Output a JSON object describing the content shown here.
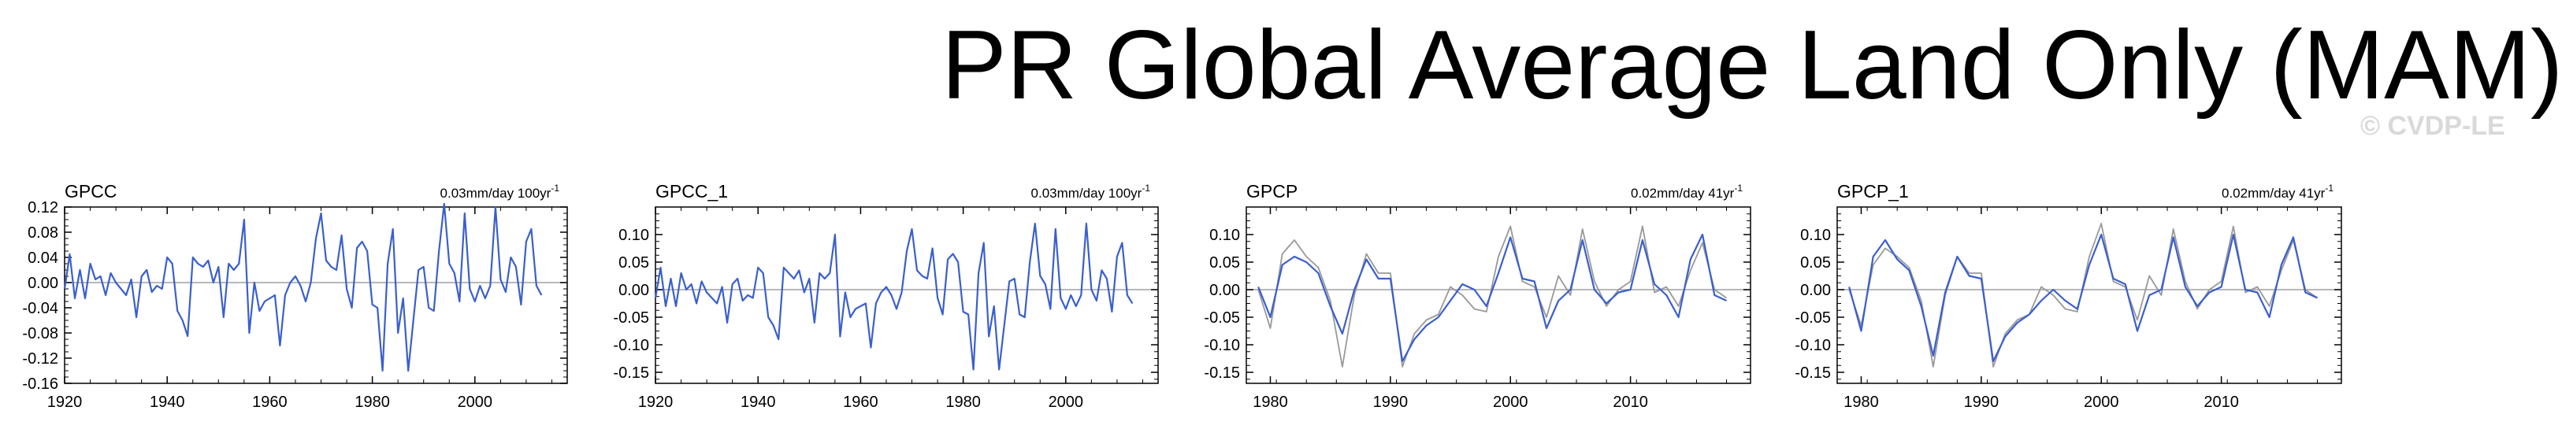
{
  "title": "PR Global Average Land Only (MAM)",
  "watermark": "© CVDP-LE",
  "colors": {
    "series": "#3a5fcd",
    "reference": "#999999",
    "zero": "#a0a0a0",
    "axis": "#000000"
  },
  "chart_data": [
    {
      "type": "line",
      "name": "GPCC",
      "trend": "0.03mm/day 100yr",
      "trend_exp": "-1",
      "xlim": [
        1920,
        2018
      ],
      "ylim": [
        -0.16,
        0.12
      ],
      "yticks": [
        "0.12",
        "0.08",
        "0.04",
        "0.00",
        "-0.04",
        "-0.08",
        "-0.12",
        "-0.16"
      ],
      "xticks": [
        "1920",
        "1940",
        "1960",
        "1980",
        "2000"
      ],
      "x_start": 1920,
      "series": [
        {
          "name": "GPCC",
          "values": [
            -0.01,
            0.045,
            -0.025,
            0.02,
            -0.025,
            0.03,
            0.005,
            0.01,
            -0.02,
            0.015,
            0.0,
            -0.01,
            -0.02,
            0.005,
            -0.055,
            0.01,
            0.02,
            -0.015,
            -0.005,
            -0.01,
            0.04,
            0.03,
            -0.045,
            -0.06,
            -0.085,
            0.04,
            0.03,
            0.025,
            0.035,
            0.0,
            0.025,
            -0.055,
            0.03,
            0.02,
            0.03,
            0.1,
            -0.08,
            0.0,
            -0.045,
            -0.03,
            -0.025,
            -0.02,
            -0.1,
            -0.02,
            0.0,
            0.01,
            -0.005,
            -0.03,
            0.0,
            0.07,
            0.11,
            0.035,
            0.025,
            0.02,
            0.075,
            -0.01,
            -0.04,
            0.055,
            0.065,
            0.05,
            -0.035,
            -0.04,
            -0.14,
            0.03,
            0.085,
            -0.08,
            -0.025,
            -0.14,
            -0.06,
            0.02,
            0.025,
            -0.04,
            -0.045,
            0.05,
            0.125,
            0.03,
            0.015,
            -0.03,
            0.11,
            -0.01,
            -0.03,
            -0.005,
            -0.025,
            -0.005,
            0.12,
            0.005,
            -0.015,
            0.04,
            0.025,
            -0.035,
            0.065,
            0.085,
            -0.005,
            -0.02
          ]
        }
      ]
    },
    {
      "type": "line",
      "name": "GPCC_1",
      "trend": "0.03mm/day 100yr",
      "trend_exp": "-1",
      "xlim": [
        1920,
        2018
      ],
      "ylim": [
        -0.17,
        0.15
      ],
      "yticks": [
        "0.10",
        "0.05",
        "0.00",
        "-0.05",
        "-0.10",
        "-0.15"
      ],
      "xticks": [
        "1920",
        "1940",
        "1960",
        "1980",
        "2000"
      ],
      "x_start": 1920,
      "series": [
        {
          "name": "GPCC_1",
          "values": [
            -0.015,
            0.04,
            -0.03,
            0.02,
            -0.03,
            0.03,
            0.0,
            0.01,
            -0.025,
            0.015,
            -0.005,
            -0.015,
            -0.025,
            0.005,
            -0.06,
            0.01,
            0.02,
            -0.02,
            -0.01,
            -0.015,
            0.04,
            0.03,
            -0.05,
            -0.065,
            -0.09,
            0.04,
            0.03,
            0.02,
            0.035,
            -0.005,
            0.02,
            -0.06,
            0.03,
            0.02,
            0.03,
            0.1,
            -0.085,
            -0.005,
            -0.05,
            -0.035,
            -0.03,
            -0.025,
            -0.105,
            -0.025,
            -0.005,
            0.005,
            -0.01,
            -0.035,
            -0.005,
            0.07,
            0.11,
            0.035,
            0.025,
            0.02,
            0.075,
            -0.015,
            -0.045,
            0.055,
            0.065,
            0.05,
            -0.04,
            -0.045,
            -0.145,
            0.03,
            0.085,
            -0.085,
            -0.03,
            -0.145,
            -0.065,
            0.015,
            0.02,
            -0.045,
            -0.05,
            0.05,
            0.12,
            0.025,
            0.01,
            -0.035,
            0.11,
            -0.015,
            -0.035,
            -0.01,
            -0.03,
            -0.01,
            0.12,
            0.0,
            -0.02,
            0.035,
            0.02,
            -0.04,
            0.06,
            0.085,
            -0.01,
            -0.025
          ]
        }
      ]
    },
    {
      "type": "line",
      "name": "GPCP",
      "trend": "0.02mm/day 41yr",
      "trend_exp": "-1",
      "xlim": [
        1978,
        2020
      ],
      "ylim": [
        -0.17,
        0.15
      ],
      "yticks": [
        "0.10",
        "0.05",
        "0.00",
        "-0.05",
        "-0.10",
        "-0.15"
      ],
      "xticks": [
        "1980",
        "1990",
        "2000",
        "2010"
      ],
      "x_start": 1979,
      "series": [
        {
          "name": "GPCP",
          "values": [
            0.005,
            -0.05,
            0.045,
            0.06,
            0.05,
            0.03,
            -0.03,
            -0.08,
            0.0,
            0.055,
            0.02,
            0.02,
            -0.13,
            -0.09,
            -0.065,
            -0.05,
            -0.02,
            0.01,
            0.0,
            -0.03,
            0.03,
            0.095,
            0.02,
            0.015,
            -0.07,
            -0.02,
            0.0,
            0.09,
            0.0,
            -0.025,
            -0.005,
            0.0,
            0.09,
            0.01,
            -0.01,
            -0.05,
            0.055,
            0.1,
            -0.01,
            -0.02
          ]
        },
        {
          "name": "reference",
          "values": [
            0.0,
            -0.07,
            0.065,
            0.09,
            0.06,
            0.04,
            -0.02,
            -0.14,
            -0.01,
            0.065,
            0.03,
            0.03,
            -0.14,
            -0.08,
            -0.055,
            -0.045,
            0.005,
            -0.01,
            -0.035,
            -0.04,
            0.06,
            0.115,
            0.015,
            0.005,
            -0.05,
            0.025,
            -0.01,
            0.11,
            0.015,
            -0.03,
            0.0,
            0.015,
            0.115,
            -0.005,
            0.005,
            -0.03,
            0.035,
            0.085,
            0.0,
            -0.015
          ]
        }
      ]
    },
    {
      "type": "line",
      "name": "GPCP_1",
      "trend": "0.02mm/day 41yr",
      "trend_exp": "-1",
      "xlim": [
        1978,
        2020
      ],
      "ylim": [
        -0.17,
        0.15
      ],
      "yticks": [
        "0.10",
        "0.05",
        "0.00",
        "-0.05",
        "-0.10",
        "-0.15"
      ],
      "xticks": [
        "1980",
        "1990",
        "2000",
        "2010"
      ],
      "x_start": 1979,
      "series": [
        {
          "name": "GPCP_1",
          "values": [
            0.005,
            -0.075,
            0.06,
            0.09,
            0.055,
            0.035,
            -0.03,
            -0.12,
            -0.005,
            0.06,
            0.025,
            0.02,
            -0.13,
            -0.085,
            -0.06,
            -0.045,
            -0.02,
            0.0,
            -0.02,
            -0.035,
            0.045,
            0.1,
            0.02,
            0.01,
            -0.075,
            -0.01,
            0.0,
            0.095,
            0.005,
            -0.03,
            -0.005,
            0.005,
            0.1,
            0.0,
            -0.005,
            -0.05,
            0.045,
            0.095,
            -0.005,
            -0.015
          ]
        },
        {
          "name": "reference",
          "values": [
            0.0,
            -0.065,
            0.045,
            0.075,
            0.06,
            0.04,
            -0.02,
            -0.14,
            -0.01,
            0.06,
            0.03,
            0.03,
            -0.14,
            -0.08,
            -0.055,
            -0.045,
            0.005,
            -0.01,
            -0.035,
            -0.04,
            0.06,
            0.12,
            0.015,
            0.005,
            -0.055,
            0.025,
            -0.01,
            0.11,
            0.015,
            -0.035,
            0.0,
            0.015,
            0.115,
            -0.005,
            0.005,
            -0.03,
            0.035,
            0.09,
            0.0,
            -0.015
          ]
        }
      ]
    }
  ]
}
